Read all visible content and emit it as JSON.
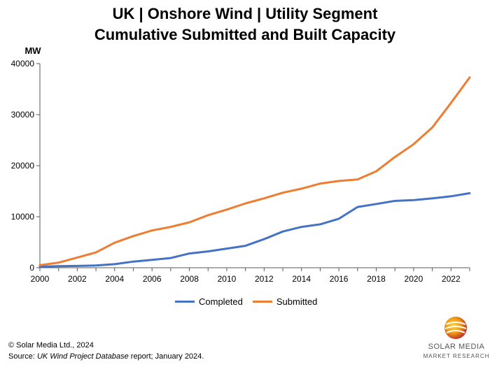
{
  "title_line1": "UK | Onshore Wind | Utility Segment",
  "title_line2": "Cumulative Submitted and Built Capacity",
  "footer": {
    "copyright": "© Solar Media Ltd., 2024",
    "source_prefix": "Source: ",
    "source_italic": "UK Wind Project Database",
    "source_suffix": " report; January 2024."
  },
  "logo": {
    "line1": "SOLAR MEDIA",
    "line2": "MARKET RESEARCH",
    "icon": "solar-media-sphere-icon"
  },
  "colors": {
    "completed": "#4472C4",
    "submitted": "#ED7D31",
    "axis": "#595959"
  },
  "chart_data": {
    "type": "line",
    "ylabel": "MW",
    "xlabel": "",
    "xlim": [
      2000,
      2023
    ],
    "ylim": [
      0,
      40000
    ],
    "yticks": [
      0,
      10000,
      20000,
      30000,
      40000
    ],
    "xticks": [
      2000,
      2002,
      2004,
      2006,
      2008,
      2010,
      2012,
      2014,
      2016,
      2018,
      2020,
      2022
    ],
    "legend_position": "bottom-center",
    "grid": false,
    "x": [
      2000,
      2001,
      2002,
      2003,
      2004,
      2005,
      2006,
      2007,
      2008,
      2009,
      2010,
      2011,
      2012,
      2013,
      2014,
      2015,
      2016,
      2017,
      2018,
      2019,
      2020,
      2021,
      2022,
      2023
    ],
    "series": [
      {
        "name": "Completed",
        "values": [
          200,
          300,
          350,
          450,
          700,
          1200,
          1550,
          1900,
          2800,
          3200,
          3750,
          4300,
          5600,
          7100,
          8000,
          8500,
          9600,
          11900,
          12500,
          13100,
          13250,
          13600,
          14000,
          14600
        ]
      },
      {
        "name": "Submitted",
        "values": [
          500,
          1000,
          2000,
          3000,
          4900,
          6200,
          7300,
          8000,
          8900,
          10300,
          11400,
          12600,
          13600,
          14700,
          15500,
          16500,
          17000,
          17300,
          18900,
          21700,
          24200,
          27500,
          32300,
          37300
        ]
      }
    ]
  }
}
